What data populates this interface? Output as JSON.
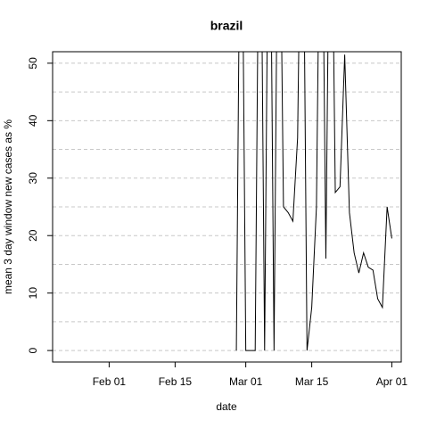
{
  "chart_data": {
    "type": "line",
    "title": "brazil",
    "x_label": "date",
    "y_label": "mean  3  day window new cases as %",
    "x": [
      "Feb 28",
      "Feb 29",
      "Mar 01",
      "Mar 02",
      "Mar 03",
      "Mar 04",
      "Mar 05",
      "Mar 06",
      "Mar 07",
      "Mar 08",
      "Mar 09",
      "Mar 10",
      "Mar 11",
      "Mar 12",
      "Mar 13",
      "Mar 14",
      "Mar 15",
      "Mar 16",
      "Mar 17",
      "Mar 18",
      "Mar 19",
      "Mar 20",
      "Mar 21",
      "Mar 22",
      "Mar 23",
      "Mar 24",
      "Mar 25",
      "Mar 26",
      "Mar 27",
      "Mar 28",
      "Mar 29",
      "Mar 30",
      "Mar 31",
      "Apr 01"
    ],
    "series": [
      {
        "name": "brazil",
        "color": "#000000",
        "values": [
          0,
          100,
          0,
          0,
          0,
          100,
          0,
          100,
          0,
          100,
          25,
          24,
          22.5,
          37,
          100,
          0,
          7.5,
          25,
          100,
          16,
          100,
          27.5,
          28.5,
          51.5,
          24,
          17,
          13.5,
          17,
          14.5,
          14,
          9,
          7.5,
          25,
          19.5
        ]
      }
    ],
    "xlim": [
      "Jan 20",
      "Apr 03"
    ],
    "xticks": [
      "Feb 01",
      "Feb 15",
      "Mar 01",
      "Mar 15",
      "Apr 01"
    ],
    "ylim": [
      -2,
      52
    ],
    "yticks": [
      0,
      10,
      20,
      30,
      40,
      50
    ],
    "minor_grid": [
      5,
      15,
      25,
      35,
      45
    ],
    "grid": true
  }
}
